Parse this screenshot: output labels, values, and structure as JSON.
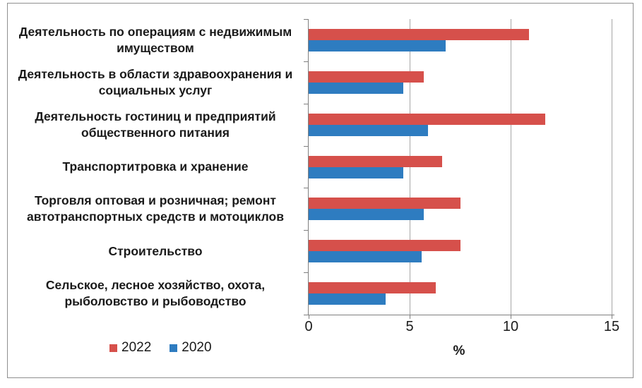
{
  "chart_data": {
    "type": "bar",
    "orientation": "horizontal",
    "title": "",
    "xlabel": "%",
    "xlim": [
      0,
      15
    ],
    "xticks": [
      "0",
      "5",
      "10",
      "15"
    ],
    "grid": true,
    "legend_position": "bottom-left",
    "categories": [
      "Деятельность по операциям с недвижимым имуществом",
      "Деятельность в области здравоохранения и социальных услуг",
      "Деятельность гостиниц и предприятий общественного питания",
      "Транспортитровка и хранение",
      "Торговля оптовая и розничная; ремонт автотранспортных средств и мотоциклов",
      "Строительство",
      "Сельское, лесное хозяйство, охота, рыболовство и рыбоводство"
    ],
    "series": [
      {
        "name": "2022",
        "color": "#d6504b",
        "values": [
          10.9,
          5.7,
          11.7,
          6.6,
          7.5,
          7.5,
          6.3
        ]
      },
      {
        "name": "2020",
        "color": "#2e7cc0",
        "values": [
          6.8,
          4.7,
          5.9,
          4.7,
          5.7,
          5.6,
          3.8
        ]
      }
    ]
  },
  "colors": {
    "axis": "#7f7f7f",
    "gridline": "#a6a6a6",
    "frame_border": "#8f8f8f",
    "text": "#1a1a1a"
  }
}
